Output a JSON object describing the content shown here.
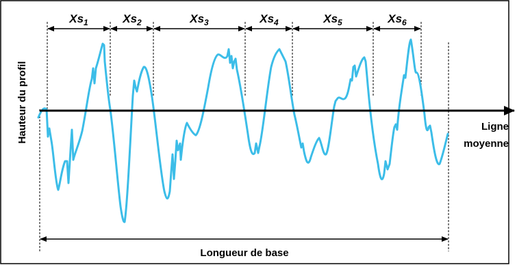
{
  "diagram": {
    "y_axis_label": "Hauteur du profil",
    "mean_line_label": [
      "Ligne",
      "moyenne"
    ],
    "base_length_label": "Longueur de base",
    "segments": [
      {
        "prefix": "Xs",
        "index": "1"
      },
      {
        "prefix": "Xs",
        "index": "2"
      },
      {
        "prefix": "Xs",
        "index": "3"
      },
      {
        "prefix": "Xs",
        "index": "4"
      },
      {
        "prefix": "Xs",
        "index": "5"
      },
      {
        "prefix": "Xs",
        "index": "6"
      }
    ],
    "colors": {
      "profile": "#3cbde8",
      "lines": "#000000",
      "border": "#000000"
    }
  }
}
